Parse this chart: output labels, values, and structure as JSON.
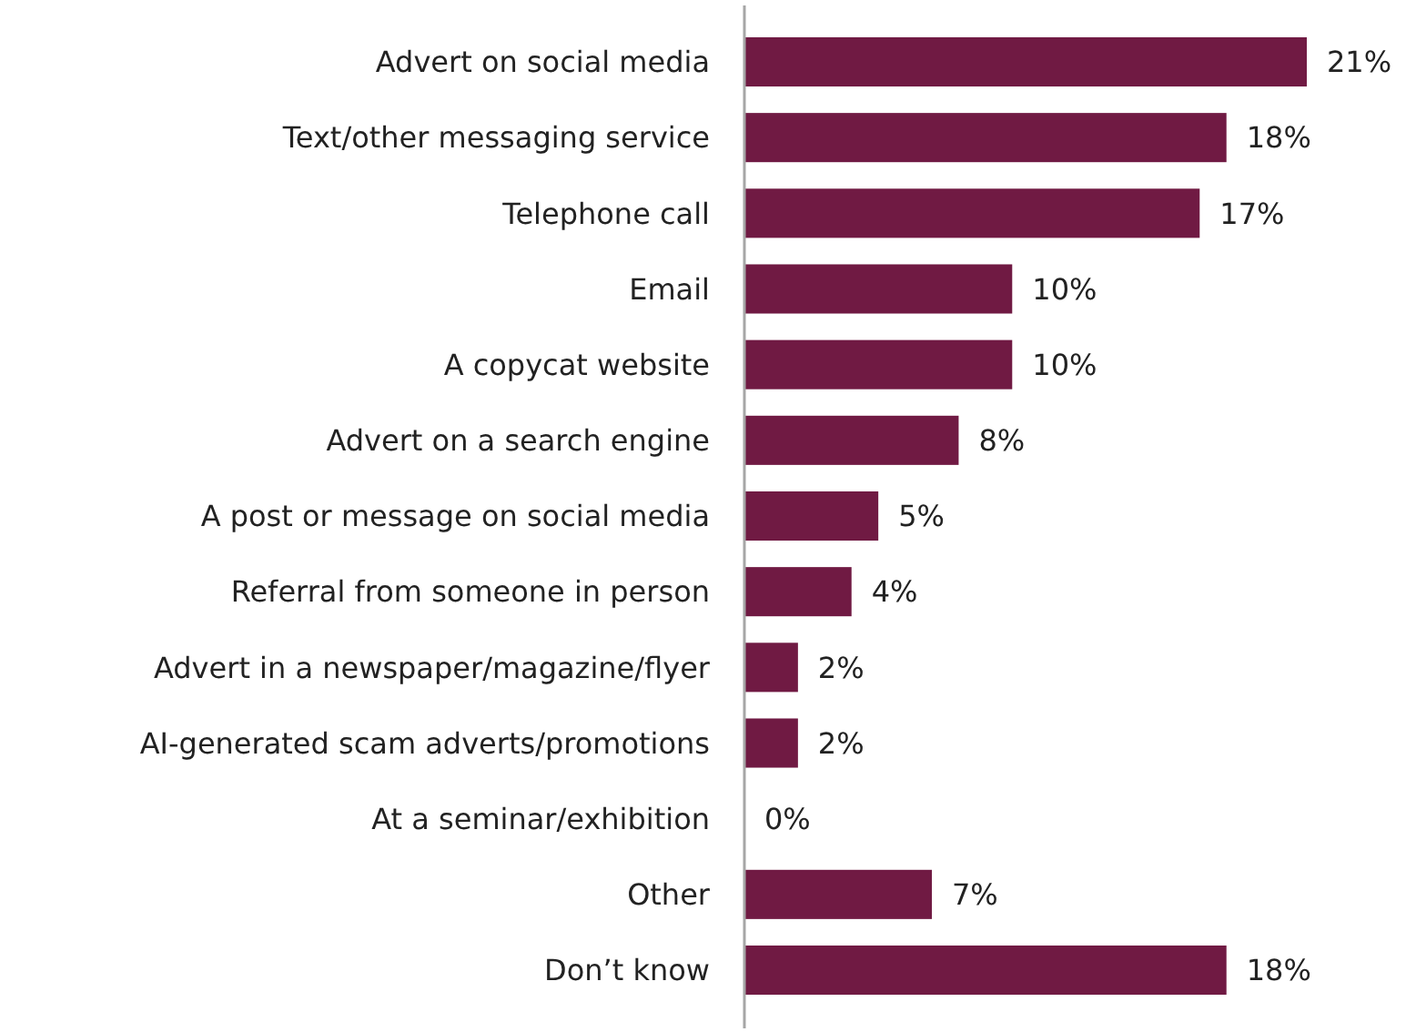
{
  "chart_data": {
    "type": "bar",
    "orientation": "horizontal",
    "categories": [
      "Advert on social media",
      "Text/other messaging service",
      "Telephone call",
      "Email",
      "A copycat website",
      "Advert on a search engine",
      "A post or message on social media",
      "Referral from someone in person",
      "Advert in a newspaper/magazine/flyer",
      "AI-generated scam adverts/promotions",
      "At a seminar/exhibition",
      "Other",
      "Don’t know"
    ],
    "values": [
      21,
      18,
      17,
      10,
      10,
      8,
      5,
      4,
      2,
      2,
      0,
      7,
      18
    ],
    "value_labels": [
      "21%",
      "18%",
      "17%",
      "10%",
      "10%",
      "8%",
      "5%",
      "4%",
      "2%",
      "2%",
      "0%",
      "7%",
      "18%"
    ],
    "color": "#701a43"
  }
}
